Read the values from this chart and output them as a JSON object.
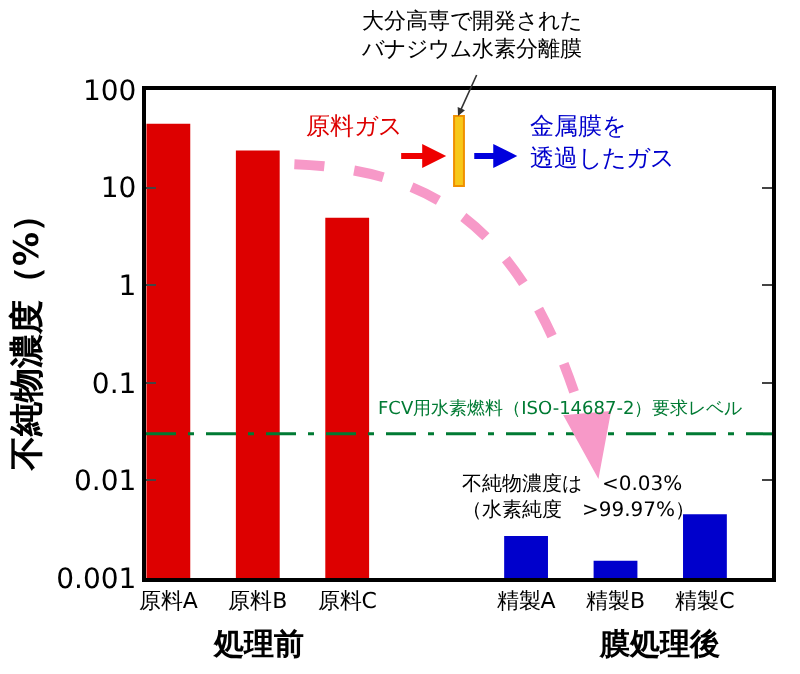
{
  "chart_data": {
    "type": "bar",
    "ylabel": "不純物濃度（%）",
    "categories": [
      "原料A",
      "原料B",
      "原料C",
      null,
      "精製A",
      "精製B",
      "精製C"
    ],
    "values": [
      45,
      24,
      4.9,
      null,
      0.0027,
      0.0015,
      0.0045
    ],
    "colors": [
      "#dd0000",
      "#dd0000",
      "#dd0000",
      null,
      "#0000cc",
      "#0000cc",
      "#0000cc"
    ],
    "log": true,
    "ylim": [
      0.001,
      100
    ],
    "yticks": [
      0.001,
      0.01,
      0.1,
      1,
      10,
      100
    ],
    "ref_lines": [
      {
        "axis": "y",
        "value": 0.03,
        "label": "FCV用水素燃料（ISO-14687-2）要求レベル",
        "color": "#007a33",
        "line_style": "dashdot"
      }
    ],
    "annotations": [
      "大分高専で開発された",
      "バナジウム水素分離膜",
      "原料ガス",
      "金属膜を",
      "透過したガス",
      "不純物濃度は　<0.03%\n（水素純度　>99.97%）",
      "処理前",
      "膜処理後"
    ]
  }
}
